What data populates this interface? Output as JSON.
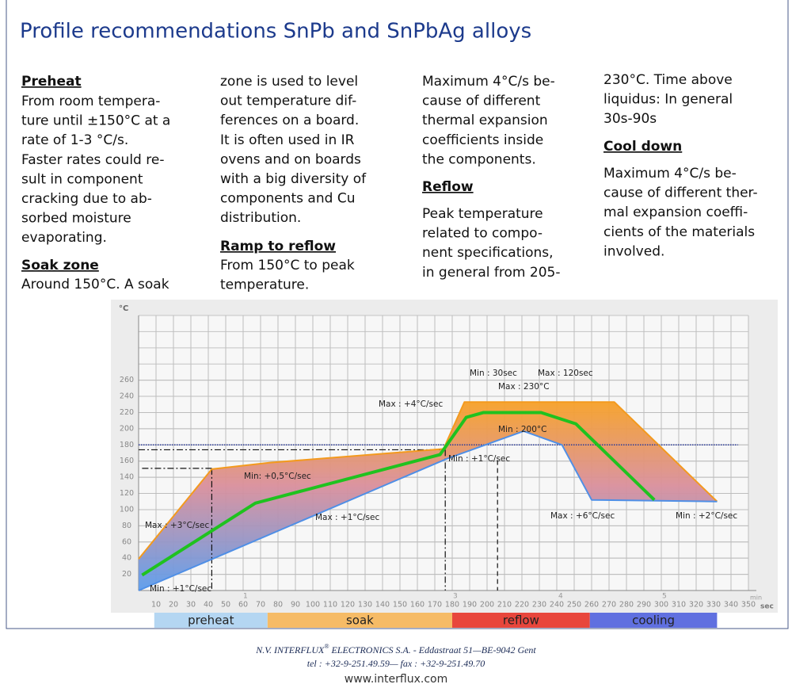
{
  "title": "Profile recommendations SnPb and SnPbAg alloys",
  "columns": [
    [
      {
        "heading": "Preheat"
      },
      {
        "lines": [
          "From room tempera-",
          "ture until ±150°C at a",
          "rate of 1-3 °C/s.",
          "Faster rates could re-",
          "sult in component",
          "cracking due to ab-",
          "sorbed moisture",
          "evaporating."
        ]
      },
      {
        "heading": "Soak zone"
      },
      {
        "lines": [
          "Around 150°C. A soak"
        ]
      }
    ],
    [
      {
        "lines": [
          "zone is used to level",
          "out temperature dif-",
          "ferences on a board.",
          "It is often used in IR",
          "ovens and on boards",
          "with a big diversity of",
          "components and Cu",
          "distribution."
        ]
      },
      {
        "heading": "Ramp to reflow"
      },
      {
        "lines": [
          "From 150°C to peak",
          "temperature."
        ]
      }
    ],
    [
      {
        "lines": [
          "Maximum 4°C/s be-",
          "cause of different",
          "thermal expansion",
          "coefficients inside",
          "the components."
        ]
      },
      {
        "heading": "Reflow"
      },
      {
        "lines": [
          "Peak temperature",
          "related to compo-",
          "nent specifications,",
          "in general from 205-"
        ]
      }
    ],
    [
      {
        "lines": [
          "230°C. Time above",
          "liquidus: In general",
          "30s-90s"
        ]
      },
      {
        "heading": "Cool down"
      },
      {
        "lines": [
          "Maximum 4°C/s be-",
          "cause of different ther-",
          "mal expansion coeffi-",
          "cients of the materials",
          "involved."
        ]
      }
    ]
  ],
  "chart": {
    "type": "line",
    "y_label": "°C",
    "x_unit": "sec",
    "x_unit_small": "min",
    "xlim": [
      0,
      350
    ],
    "ylim": [
      0,
      340
    ],
    "xticks": [
      10,
      20,
      30,
      40,
      50,
      60,
      70,
      80,
      90,
      100,
      110,
      120,
      130,
      140,
      150,
      160,
      170,
      180,
      190,
      200,
      210,
      220,
      230,
      240,
      250,
      260,
      270,
      280,
      290,
      300,
      310,
      320,
      330,
      340,
      350
    ],
    "yticks": [
      20,
      40,
      60,
      80,
      100,
      120,
      140,
      160,
      180,
      200,
      220,
      240,
      260
    ],
    "grid": true,
    "series": [
      {
        "color": "#f39a1e",
        "x": [
          0,
          42,
          75,
          175,
          187,
          273,
          332
        ],
        "values": [
          39,
          150,
          158,
          175,
          233,
          233,
          110
        ]
      },
      {
        "color": "#4f8fe6",
        "x": [
          0,
          177,
          221,
          243,
          260,
          332
        ],
        "values": [
          0,
          163,
          197,
          180,
          112,
          110
        ]
      },
      {
        "color": "#1fc21f",
        "x": [
          2,
          67,
          173,
          188,
          198,
          231,
          251,
          296
        ],
        "values": [
          19,
          108,
          168,
          214,
          220,
          220,
          206,
          112
        ]
      }
    ],
    "guides": [
      {
        "style": "dotted",
        "x": [
          0,
          344
        ],
        "y": [
          180,
          180
        ]
      },
      {
        "style": "dashdot",
        "x": [
          0,
          176
        ],
        "y": [
          174,
          174
        ]
      },
      {
        "style": "dashdot",
        "x": [
          176,
          176
        ],
        "y": [
          174,
          0
        ]
      },
      {
        "style": "dashdot",
        "x": [
          2,
          42
        ],
        "y": [
          151,
          151
        ]
      },
      {
        "style": "dashdot",
        "x": [
          42,
          42
        ],
        "y": [
          151,
          0
        ]
      },
      {
        "style": "dashed",
        "x": [
          206,
          206
        ],
        "y": [
          161,
          0
        ]
      }
    ],
    "annotations": [
      "Min : 30sec",
      "Max : 120sec",
      "Max : 230°C",
      "Max : +4°C/sec",
      "Min : 200°C",
      "Min : +1°C/sec",
      "Min: +0,5°C/sec",
      "Max : +3°C/sec",
      "Max : +1°C/sec",
      "Max : +6°C/sec",
      "Min : +2°C/sec",
      "Min : +1°C/sec"
    ],
    "zone_numbers": [
      "1",
      "3",
      "4",
      "5"
    ],
    "phases": [
      {
        "name": "preheat",
        "start": 9,
        "end": 74,
        "color": "#b4d6f2"
      },
      {
        "name": "soak",
        "start": 74,
        "end": 180,
        "color": "#f6bb66"
      },
      {
        "name": "reflow",
        "start": 180,
        "end": 259,
        "color": "#e8463c"
      },
      {
        "name": "cooling",
        "start": 259,
        "end": 332,
        "color": "#6070e0"
      }
    ]
  },
  "footer": {
    "company": "N.V. INTERFLUX",
    "mark": "®",
    "address": " ELECTRONICS S.A.  - Eddastraat 51—BE-9042 Gent",
    "contact": "tel : +32-9-251.49.59— fax : +32-9-251.49.70",
    "web": "www.interflux.com"
  }
}
